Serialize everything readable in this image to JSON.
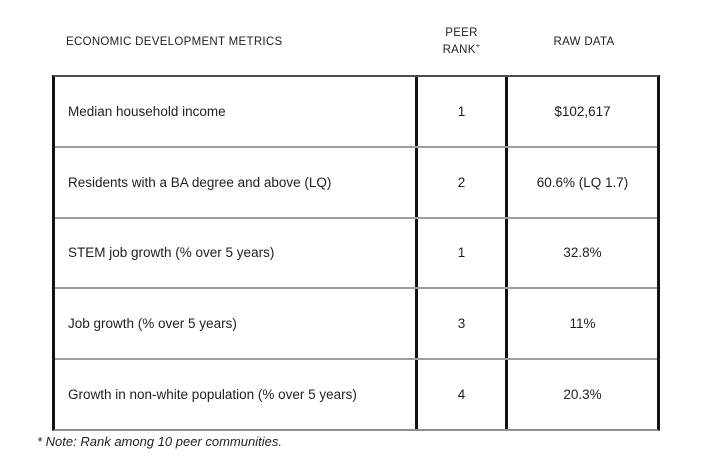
{
  "header": {
    "metrics_label": "ECONOMIC DEVELOPMENT METRICS",
    "peer_rank_line1": "PEER",
    "peer_rank_line2": "RANK",
    "peer_rank_sup": "+",
    "raw_data_label": "RAW DATA"
  },
  "table": {
    "rows": [
      {
        "metric": "Median household income",
        "rank": "1",
        "raw": "$102,617"
      },
      {
        "metric": "Residents with a BA degree and above (LQ)",
        "rank": "2",
        "raw": "60.6% (LQ 1.7)"
      },
      {
        "metric": "STEM job growth (% over 5 years)",
        "rank": "1",
        "raw": "32.8%"
      },
      {
        "metric": "Job growth (% over 5 years)",
        "rank": "3",
        "raw": "11%"
      },
      {
        "metric": "Growth in non-white population (% over 5 years)",
        "rank": "4",
        "raw": "20.3%"
      }
    ]
  },
  "footnote": "* Note: Rank among 10 peer communities.",
  "colors": {
    "text": "#1f1f1f",
    "border_vertical": "#111111",
    "border_top": "#4d4d4d",
    "row_separator": "#9e9e9e"
  }
}
